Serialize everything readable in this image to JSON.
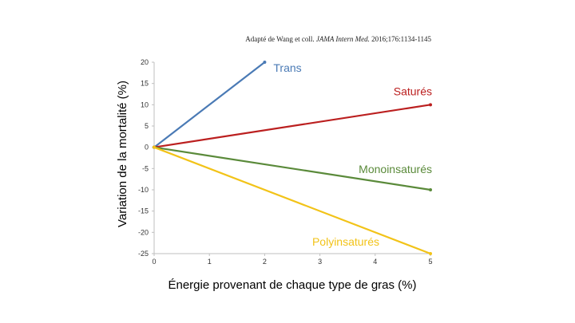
{
  "source_note": {
    "prefix": "Adapté de Wang et coll. ",
    "journal": "JAMA Intern Med.",
    "suffix": " 2016;176:1134-1145"
  },
  "chart_data": {
    "type": "line",
    "xlabel": "Énergie provenant de chaque type de gras (%)",
    "ylabel": "Variation de la mortalité (%)",
    "xlim": [
      0,
      5
    ],
    "ylim": [
      -25,
      20
    ],
    "x_ticks": [
      0,
      1,
      2,
      3,
      4,
      5
    ],
    "y_ticks": [
      20,
      15,
      10,
      5,
      0,
      -5,
      -10,
      -15,
      -20,
      -25
    ],
    "grid": false,
    "legend": "inline labels",
    "series": [
      {
        "name": "Trans",
        "color": "#4a7ab5",
        "x": [
          0,
          2
        ],
        "y": [
          0,
          20
        ]
      },
      {
        "name": "Saturés",
        "color": "#bb1f1f",
        "x": [
          0,
          5
        ],
        "y": [
          0,
          10
        ]
      },
      {
        "name": "Monoinsaturés",
        "color": "#5a8a3a",
        "x": [
          0,
          5
        ],
        "y": [
          0,
          -10
        ]
      },
      {
        "name": "Polyinsaturés",
        "color": "#f2c318",
        "x": [
          0,
          5
        ],
        "y": [
          0,
          -25
        ]
      }
    ]
  }
}
